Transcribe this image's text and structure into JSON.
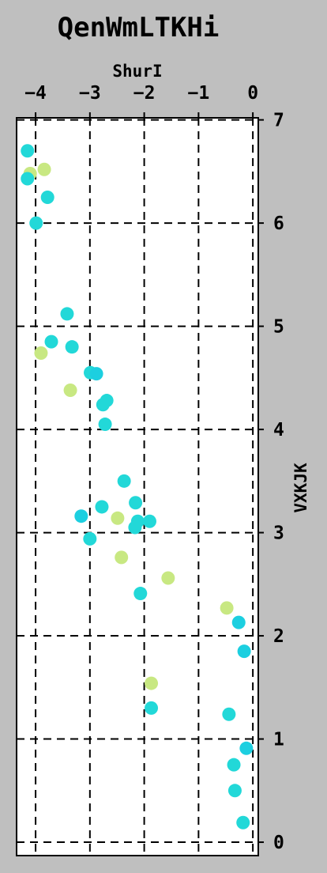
{
  "chart_data": {
    "type": "scatter",
    "title": "QenWmLTKHi",
    "xlabel": "ShurI",
    "ylabel": "VXKJK",
    "xlim": [
      -4.35,
      0.1
    ],
    "ylim": [
      -0.13,
      7.02
    ],
    "xticks": [
      -4,
      -3,
      -2,
      -1,
      0
    ],
    "xtick_labels": [
      "−4",
      "−3",
      "−2",
      "−1",
      "0"
    ],
    "yticks": [
      0,
      1,
      2,
      3,
      4,
      5,
      6,
      7
    ],
    "ytick_labels": [
      "0",
      "1",
      "2",
      "3",
      "4",
      "5",
      "6",
      "7"
    ],
    "grid": true,
    "series": [
      {
        "color": "#c8e882",
        "points": [
          {
            "x": -4.1,
            "y": 6.48
          },
          {
            "x": -3.84,
            "y": 6.52
          },
          {
            "x": -3.9,
            "y": 4.74
          },
          {
            "x": -3.36,
            "y": 4.38
          },
          {
            "x": -2.49,
            "y": 3.14
          },
          {
            "x": -2.42,
            "y": 2.76
          },
          {
            "x": -1.56,
            "y": 2.56
          },
          {
            "x": -0.48,
            "y": 2.27
          },
          {
            "x": -1.87,
            "y": 1.54
          }
        ]
      },
      {
        "color": "#22d8d8",
        "points": [
          {
            "x": -4.15,
            "y": 6.7
          },
          {
            "x": -4.15,
            "y": 6.43
          },
          {
            "x": -3.78,
            "y": 6.25
          },
          {
            "x": -3.99,
            "y": 6.0
          },
          {
            "x": -3.42,
            "y": 5.12
          },
          {
            "x": -3.71,
            "y": 4.85
          },
          {
            "x": -3.33,
            "y": 4.8
          },
          {
            "x": -2.99,
            "y": 4.55
          },
          {
            "x": -2.69,
            "y": 4.28
          },
          {
            "x": -2.76,
            "y": 4.24
          },
          {
            "x": -2.72,
            "y": 4.05
          },
          {
            "x": -2.37,
            "y": 3.5
          },
          {
            "x": -2.16,
            "y": 3.29
          },
          {
            "x": -2.78,
            "y": 3.25
          },
          {
            "x": -2.12,
            "y": 3.11
          },
          {
            "x": -1.9,
            "y": 3.11
          },
          {
            "x": -2.17,
            "y": 3.05
          },
          {
            "x": -3.0,
            "y": 2.94
          },
          {
            "x": -2.07,
            "y": 2.41
          },
          {
            "x": -1.87,
            "y": 1.3
          },
          {
            "x": -0.44,
            "y": 1.24
          },
          {
            "x": -0.35,
            "y": 0.75
          },
          {
            "x": -0.33,
            "y": 0.5
          },
          {
            "x": -0.18,
            "y": 0.19
          }
        ]
      },
      {
        "color": "#1ccfe0",
        "points": [
          {
            "x": -2.88,
            "y": 4.54
          },
          {
            "x": -3.16,
            "y": 3.16
          },
          {
            "x": -0.26,
            "y": 2.13
          },
          {
            "x": -0.16,
            "y": 1.85
          },
          {
            "x": -0.12,
            "y": 0.91
          }
        ]
      }
    ]
  }
}
